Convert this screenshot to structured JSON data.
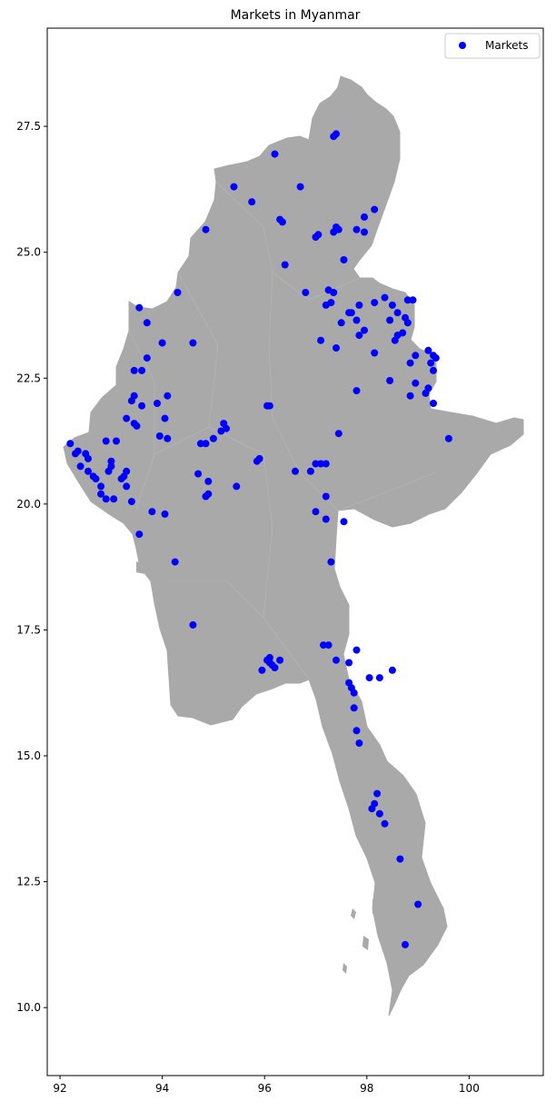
{
  "title": "Markets in Myanmar",
  "legend": {
    "label": "Markets",
    "marker_color": "#0000ff",
    "placement": "top-right"
  },
  "colors": {
    "land": "#a9a9a9",
    "markers": "#0000ff",
    "axes": "#000000",
    "background": "#ffffff"
  },
  "axes": {
    "x_ticks": [
      92,
      94,
      96,
      98,
      100
    ],
    "y_ticks": [
      10.0,
      12.5,
      15.0,
      17.5,
      20.0,
      22.5,
      25.0,
      27.5
    ],
    "x_range": [
      91.75,
      101.45
    ],
    "y_range": [
      8.65,
      29.45
    ]
  },
  "chart_data": {
    "type": "scatter",
    "title": "Markets in Myanmar",
    "xlabel": "",
    "ylabel": "",
    "xlim": [
      91.75,
      101.45
    ],
    "ylim": [
      8.65,
      29.45
    ],
    "grid": false,
    "legend": "top-right",
    "series": [
      {
        "name": "Markets",
        "points": [
          [
            97.35,
            27.3
          ],
          [
            97.4,
            27.35
          ],
          [
            96.2,
            26.95
          ],
          [
            95.4,
            26.3
          ],
          [
            96.7,
            26.3
          ],
          [
            95.75,
            26.0
          ],
          [
            96.35,
            25.6
          ],
          [
            96.3,
            25.65
          ],
          [
            98.15,
            25.85
          ],
          [
            97.95,
            25.7
          ],
          [
            97.4,
            25.5
          ],
          [
            97.45,
            25.45
          ],
          [
            97.8,
            25.45
          ],
          [
            97.95,
            25.4
          ],
          [
            97.35,
            25.4
          ],
          [
            97.05,
            25.35
          ],
          [
            97.0,
            25.3
          ],
          [
            94.85,
            25.45
          ],
          [
            97.55,
            24.85
          ],
          [
            96.4,
            24.75
          ],
          [
            94.3,
            24.2
          ],
          [
            96.8,
            24.2
          ],
          [
            97.25,
            24.25
          ],
          [
            97.35,
            24.2
          ],
          [
            97.3,
            24.0
          ],
          [
            97.2,
            23.95
          ],
          [
            98.35,
            24.1
          ],
          [
            98.8,
            24.05
          ],
          [
            98.9,
            24.05
          ],
          [
            98.15,
            24.0
          ],
          [
            97.85,
            23.95
          ],
          [
            98.5,
            23.95
          ],
          [
            93.55,
            23.9
          ],
          [
            97.7,
            23.8
          ],
          [
            97.65,
            23.8
          ],
          [
            98.6,
            23.8
          ],
          [
            98.75,
            23.7
          ],
          [
            98.45,
            23.65
          ],
          [
            98.8,
            23.6
          ],
          [
            97.8,
            23.65
          ],
          [
            97.5,
            23.6
          ],
          [
            93.7,
            23.6
          ],
          [
            97.95,
            23.45
          ],
          [
            97.85,
            23.35
          ],
          [
            98.7,
            23.4
          ],
          [
            98.6,
            23.35
          ],
          [
            98.55,
            23.25
          ],
          [
            97.1,
            23.25
          ],
          [
            94.0,
            23.2
          ],
          [
            94.6,
            23.2
          ],
          [
            97.4,
            23.1
          ],
          [
            99.2,
            23.05
          ],
          [
            99.3,
            22.95
          ],
          [
            99.35,
            22.9
          ],
          [
            98.15,
            23.0
          ],
          [
            98.95,
            22.95
          ],
          [
            93.7,
            22.9
          ],
          [
            98.85,
            22.8
          ],
          [
            99.25,
            22.8
          ],
          [
            99.3,
            22.65
          ],
          [
            93.45,
            22.65
          ],
          [
            93.6,
            22.65
          ],
          [
            98.45,
            22.45
          ],
          [
            98.95,
            22.4
          ],
          [
            99.2,
            22.3
          ],
          [
            99.15,
            22.2
          ],
          [
            97.8,
            22.25
          ],
          [
            93.45,
            22.15
          ],
          [
            98.85,
            22.15
          ],
          [
            94.1,
            22.15
          ],
          [
            93.4,
            22.05
          ],
          [
            93.9,
            22.0
          ],
          [
            93.6,
            21.95
          ],
          [
            96.1,
            21.95
          ],
          [
            96.05,
            21.95
          ],
          [
            99.3,
            22.0
          ],
          [
            93.3,
            21.7
          ],
          [
            94.05,
            21.7
          ],
          [
            95.2,
            21.6
          ],
          [
            93.45,
            21.6
          ],
          [
            93.5,
            21.55
          ],
          [
            95.25,
            21.5
          ],
          [
            95.15,
            21.45
          ],
          [
            97.45,
            21.4
          ],
          [
            93.95,
            21.35
          ],
          [
            94.1,
            21.3
          ],
          [
            95.0,
            21.3
          ],
          [
            99.6,
            21.3
          ],
          [
            92.9,
            21.25
          ],
          [
            93.1,
            21.25
          ],
          [
            94.75,
            21.2
          ],
          [
            94.85,
            21.2
          ],
          [
            92.2,
            21.2
          ],
          [
            92.3,
            21.0
          ],
          [
            92.35,
            21.05
          ],
          [
            92.5,
            21.0
          ],
          [
            92.55,
            20.9
          ],
          [
            95.85,
            20.85
          ],
          [
            95.9,
            20.9
          ],
          [
            97.0,
            20.8
          ],
          [
            97.1,
            20.8
          ],
          [
            97.2,
            20.8
          ],
          [
            96.9,
            20.65
          ],
          [
            96.6,
            20.65
          ],
          [
            93.0,
            20.85
          ],
          [
            93.0,
            20.75
          ],
          [
            92.95,
            20.65
          ],
          [
            92.4,
            20.75
          ],
          [
            92.55,
            20.65
          ],
          [
            93.3,
            20.65
          ],
          [
            93.25,
            20.55
          ],
          [
            93.2,
            20.5
          ],
          [
            92.65,
            20.55
          ],
          [
            92.7,
            20.5
          ],
          [
            92.8,
            20.35
          ],
          [
            93.3,
            20.35
          ],
          [
            94.7,
            20.6
          ],
          [
            94.9,
            20.45
          ],
          [
            95.45,
            20.35
          ],
          [
            92.8,
            20.2
          ],
          [
            92.9,
            20.1
          ],
          [
            93.05,
            20.1
          ],
          [
            93.4,
            20.05
          ],
          [
            94.85,
            20.15
          ],
          [
            94.9,
            20.2
          ],
          [
            97.2,
            20.15
          ],
          [
            97.0,
            19.85
          ],
          [
            97.2,
            19.7
          ],
          [
            97.55,
            19.65
          ],
          [
            93.8,
            19.85
          ],
          [
            94.05,
            19.8
          ],
          [
            93.55,
            19.4
          ],
          [
            94.25,
            18.85
          ],
          [
            97.3,
            18.85
          ],
          [
            94.6,
            17.6
          ],
          [
            97.15,
            17.2
          ],
          [
            97.25,
            17.2
          ],
          [
            97.8,
            17.1
          ],
          [
            96.1,
            16.95
          ],
          [
            96.05,
            16.9
          ],
          [
            96.1,
            16.85
          ],
          [
            96.15,
            16.8
          ],
          [
            96.3,
            16.9
          ],
          [
            96.2,
            16.75
          ],
          [
            95.95,
            16.7
          ],
          [
            97.4,
            16.9
          ],
          [
            97.65,
            16.85
          ],
          [
            98.5,
            16.7
          ],
          [
            98.05,
            16.55
          ],
          [
            98.25,
            16.55
          ],
          [
            97.65,
            16.45
          ],
          [
            97.7,
            16.35
          ],
          [
            97.75,
            16.25
          ],
          [
            97.75,
            15.95
          ],
          [
            97.8,
            15.5
          ],
          [
            97.85,
            15.25
          ],
          [
            98.2,
            14.25
          ],
          [
            98.15,
            14.05
          ],
          [
            98.1,
            13.95
          ],
          [
            98.25,
            13.85
          ],
          [
            98.35,
            13.65
          ],
          [
            98.65,
            12.95
          ],
          [
            99.0,
            12.05
          ],
          [
            98.75,
            11.25
          ]
        ]
      }
    ]
  }
}
